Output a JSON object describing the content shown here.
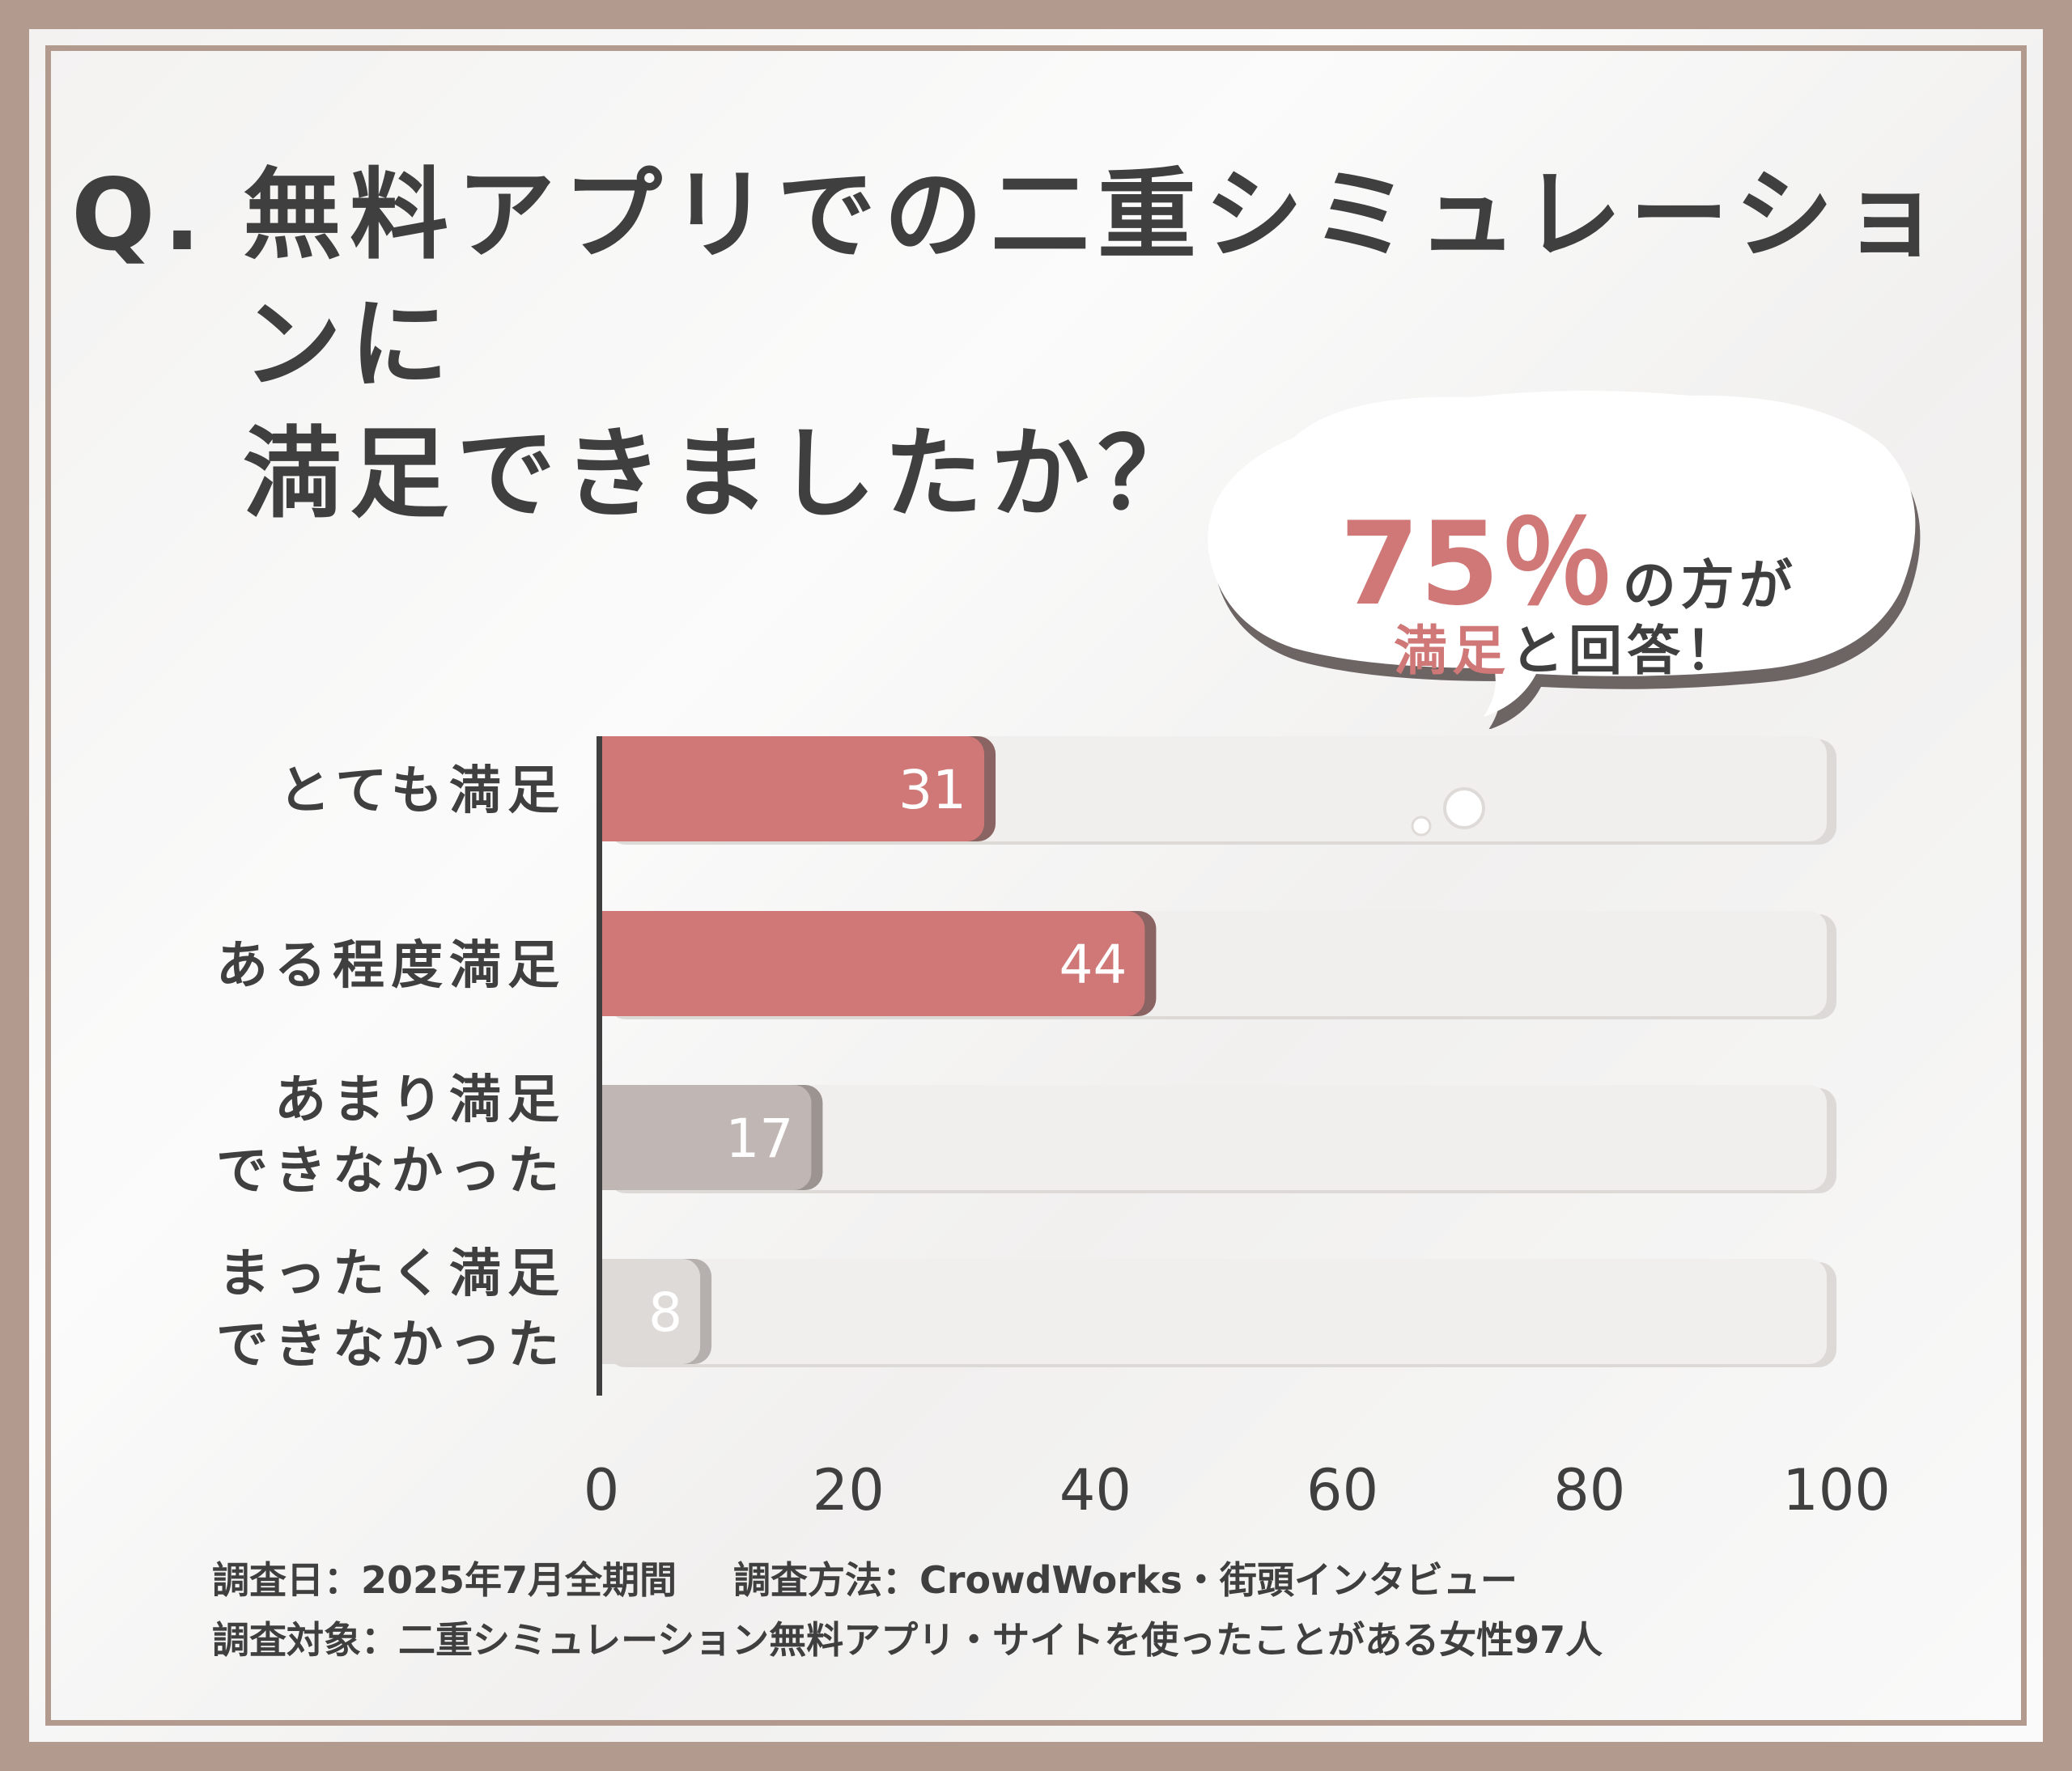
{
  "title": {
    "prefix": "Q.",
    "line1": "無料アプリでの二重シミュレーションに",
    "line2": "満足できましたか？"
  },
  "callout": {
    "percent": "75％",
    "suffix": "の方が",
    "accent": "満足",
    "rest": "と回答！"
  },
  "chart_data": {
    "type": "bar",
    "orientation": "horizontal",
    "categories": [
      [
        "とても満足"
      ],
      [
        "ある程度満足"
      ],
      [
        "あまり満足",
        "できなかった"
      ],
      [
        "まったく満足",
        "できなかった"
      ]
    ],
    "values": [
      31,
      44,
      17,
      8
    ],
    "xlim": [
      0,
      100
    ],
    "xticks": [
      0,
      20,
      40,
      60,
      80,
      100
    ],
    "grid": false,
    "colors": {
      "satisfied": "#cf7877",
      "unsatisfied_1": "#c0b7b4",
      "unsatisfied_2": "#dedad8",
      "track": "#f1efee",
      "axis": "#3f3f3f"
    }
  },
  "footer": {
    "date": "調査日：2025年7月全期間",
    "method": "調査方法：CrowdWorks・街頭インタビュー",
    "target": "調査対象：二重シミュレーション無料アプリ・サイトを使ったことがある女性97人"
  }
}
